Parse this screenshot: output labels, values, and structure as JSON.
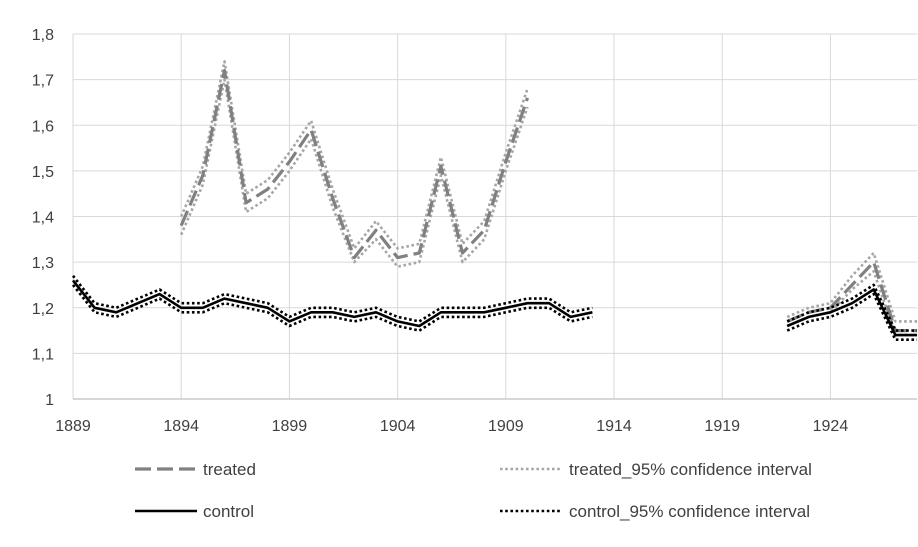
{
  "chart_data": {
    "type": "line",
    "title": "",
    "xlabel": "",
    "ylabel": "",
    "xlim": [
      1889,
      1928
    ],
    "ylim": [
      1,
      1.8
    ],
    "x_ticks": [
      1889,
      1894,
      1899,
      1904,
      1909,
      1914,
      1919,
      1924
    ],
    "x_tick_labels": [
      "1889",
      "1894",
      "1899",
      "1904",
      "1909",
      "1914",
      "1919",
      "1924"
    ],
    "y_ticks": [
      1,
      1.1,
      1.2,
      1.3,
      1.4,
      1.5,
      1.6,
      1.7,
      1.8
    ],
    "y_tick_labels": [
      "1",
      "1,1",
      "1,2",
      "1,3",
      "1,4",
      "1,5",
      "1,6",
      "1,7",
      "1,8"
    ],
    "grid": "vertical and horizontal",
    "legend_position": "bottom",
    "series": [
      {
        "name": "treated",
        "style": "dashed",
        "color": "#808080",
        "points": [
          [
            1894,
            1.38
          ],
          [
            1895,
            1.49
          ],
          [
            1896,
            1.72
          ],
          [
            1897,
            1.43
          ],
          [
            1898,
            1.46
          ],
          [
            1899,
            1.52
          ],
          [
            1900,
            1.59
          ],
          [
            1901,
            1.44
          ],
          [
            1902,
            1.31
          ],
          [
            1903,
            1.37
          ],
          [
            1904,
            1.31
          ],
          [
            1905,
            1.32
          ],
          [
            1906,
            1.51
          ],
          [
            1907,
            1.32
          ],
          [
            1908,
            1.37
          ],
          [
            1909,
            1.52
          ],
          [
            1910,
            1.66
          ],
          [
            1922,
            1.17
          ],
          [
            1923,
            1.19
          ],
          [
            1924,
            1.2
          ],
          [
            1925,
            1.25
          ],
          [
            1926,
            1.3
          ],
          [
            1927,
            1.15
          ],
          [
            1928,
            1.15
          ]
        ]
      },
      {
        "name": "treated_95% confidence interval",
        "style": "dotted",
        "color": "#a6a6a6",
        "points": [
          [
            1894,
            1.36
          ],
          [
            1895,
            1.47
          ],
          [
            1896,
            1.7
          ],
          [
            1897,
            1.41
          ],
          [
            1898,
            1.44
          ],
          [
            1899,
            1.5
          ],
          [
            1900,
            1.57
          ],
          [
            1901,
            1.42
          ],
          [
            1902,
            1.3
          ],
          [
            1903,
            1.35
          ],
          [
            1904,
            1.29
          ],
          [
            1905,
            1.3
          ],
          [
            1906,
            1.49
          ],
          [
            1907,
            1.3
          ],
          [
            1908,
            1.35
          ],
          [
            1909,
            1.5
          ],
          [
            1910,
            1.64
          ],
          [
            1922,
            1.16
          ],
          [
            1923,
            1.18
          ],
          [
            1924,
            1.19
          ],
          [
            1925,
            1.24
          ],
          [
            1926,
            1.28
          ],
          [
            1927,
            1.14
          ],
          [
            1928,
            1.14
          ]
        ]
      },
      {
        "name": "",
        "style": "dotted",
        "color": "#a6a6a6",
        "points": [
          [
            1894,
            1.4
          ],
          [
            1895,
            1.51
          ],
          [
            1896,
            1.74
          ],
          [
            1897,
            1.45
          ],
          [
            1898,
            1.48
          ],
          [
            1899,
            1.54
          ],
          [
            1900,
            1.61
          ],
          [
            1901,
            1.46
          ],
          [
            1902,
            1.33
          ],
          [
            1903,
            1.39
          ],
          [
            1904,
            1.33
          ],
          [
            1905,
            1.34
          ],
          [
            1906,
            1.53
          ],
          [
            1907,
            1.34
          ],
          [
            1908,
            1.39
          ],
          [
            1909,
            1.54
          ],
          [
            1910,
            1.68
          ],
          [
            1922,
            1.18
          ],
          [
            1923,
            1.2
          ],
          [
            1924,
            1.21
          ],
          [
            1925,
            1.27
          ],
          [
            1926,
            1.32
          ],
          [
            1927,
            1.17
          ],
          [
            1928,
            1.17
          ]
        ]
      },
      {
        "name": "control",
        "style": "solid",
        "color": "#000000",
        "points": [
          [
            1889,
            1.26
          ],
          [
            1890,
            1.2
          ],
          [
            1891,
            1.19
          ],
          [
            1892,
            1.21
          ],
          [
            1893,
            1.23
          ],
          [
            1894,
            1.2
          ],
          [
            1895,
            1.2
          ],
          [
            1896,
            1.22
          ],
          [
            1897,
            1.21
          ],
          [
            1898,
            1.2
          ],
          [
            1899,
            1.17
          ],
          [
            1900,
            1.19
          ],
          [
            1901,
            1.19
          ],
          [
            1902,
            1.18
          ],
          [
            1903,
            1.19
          ],
          [
            1904,
            1.17
          ],
          [
            1905,
            1.16
          ],
          [
            1906,
            1.19
          ],
          [
            1907,
            1.19
          ],
          [
            1908,
            1.19
          ],
          [
            1909,
            1.2
          ],
          [
            1910,
            1.21
          ],
          [
            1911,
            1.21
          ],
          [
            1912,
            1.18
          ],
          [
            1913,
            1.19
          ],
          [
            1922,
            1.16
          ],
          [
            1923,
            1.18
          ],
          [
            1924,
            1.19
          ],
          [
            1925,
            1.21
          ],
          [
            1926,
            1.24
          ],
          [
            1927,
            1.14
          ],
          [
            1928,
            1.14
          ]
        ]
      },
      {
        "name": "control_95% confidence interval",
        "style": "dotted",
        "color": "#000000",
        "points": [
          [
            1889,
            1.25
          ],
          [
            1890,
            1.19
          ],
          [
            1891,
            1.18
          ],
          [
            1892,
            1.2
          ],
          [
            1893,
            1.22
          ],
          [
            1894,
            1.19
          ],
          [
            1895,
            1.19
          ],
          [
            1896,
            1.21
          ],
          [
            1897,
            1.2
          ],
          [
            1898,
            1.19
          ],
          [
            1899,
            1.16
          ],
          [
            1900,
            1.18
          ],
          [
            1901,
            1.18
          ],
          [
            1902,
            1.17
          ],
          [
            1903,
            1.18
          ],
          [
            1904,
            1.16
          ],
          [
            1905,
            1.15
          ],
          [
            1906,
            1.18
          ],
          [
            1907,
            1.18
          ],
          [
            1908,
            1.18
          ],
          [
            1909,
            1.19
          ],
          [
            1910,
            1.2
          ],
          [
            1911,
            1.2
          ],
          [
            1912,
            1.17
          ],
          [
            1913,
            1.18
          ],
          [
            1922,
            1.15
          ],
          [
            1923,
            1.17
          ],
          [
            1924,
            1.18
          ],
          [
            1925,
            1.2
          ],
          [
            1926,
            1.23
          ],
          [
            1927,
            1.13
          ],
          [
            1928,
            1.13
          ]
        ]
      },
      {
        "name": "",
        "style": "dotted",
        "color": "#000000",
        "points": [
          [
            1889,
            1.27
          ],
          [
            1890,
            1.21
          ],
          [
            1891,
            1.2
          ],
          [
            1892,
            1.22
          ],
          [
            1893,
            1.24
          ],
          [
            1894,
            1.21
          ],
          [
            1895,
            1.21
          ],
          [
            1896,
            1.23
          ],
          [
            1897,
            1.22
          ],
          [
            1898,
            1.21
          ],
          [
            1899,
            1.18
          ],
          [
            1900,
            1.2
          ],
          [
            1901,
            1.2
          ],
          [
            1902,
            1.19
          ],
          [
            1903,
            1.2
          ],
          [
            1904,
            1.18
          ],
          [
            1905,
            1.17
          ],
          [
            1906,
            1.2
          ],
          [
            1907,
            1.2
          ],
          [
            1908,
            1.2
          ],
          [
            1909,
            1.21
          ],
          [
            1910,
            1.22
          ],
          [
            1911,
            1.22
          ],
          [
            1912,
            1.19
          ],
          [
            1913,
            1.2
          ],
          [
            1922,
            1.17
          ],
          [
            1923,
            1.19
          ],
          [
            1924,
            1.2
          ],
          [
            1925,
            1.22
          ],
          [
            1926,
            1.25
          ],
          [
            1927,
            1.15
          ],
          [
            1928,
            1.15
          ]
        ]
      }
    ],
    "legend": [
      {
        "label": "treated",
        "style": "dashed",
        "color": "#808080"
      },
      {
        "label": "treated_95% confidence interval",
        "style": "dotted",
        "color": "#a6a6a6"
      },
      {
        "label": "control",
        "style": "solid",
        "color": "#000000"
      },
      {
        "label": "control_95% confidence interval",
        "style": "dotted",
        "color": "#000000"
      }
    ]
  }
}
